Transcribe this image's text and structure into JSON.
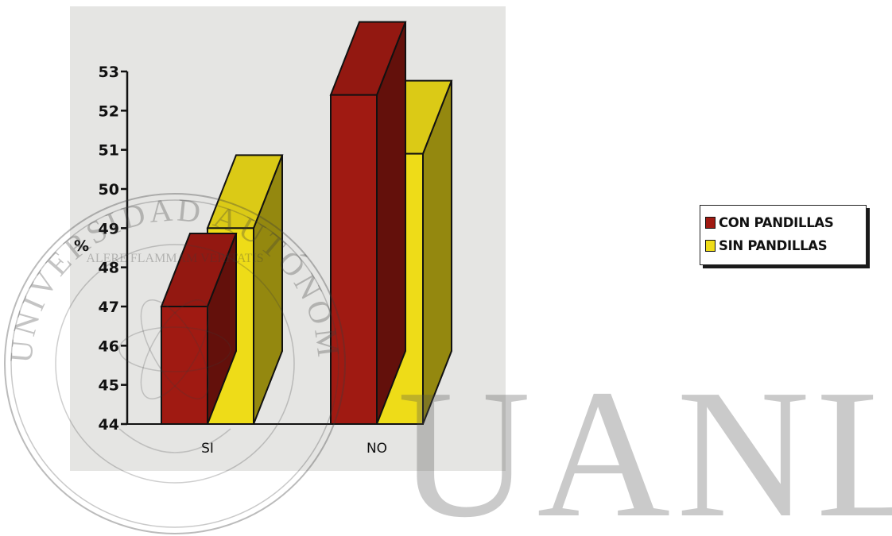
{
  "chart_data": {
    "type": "bar",
    "title": "",
    "xlabel": "",
    "ylabel": "%",
    "ylim": [
      44,
      53
    ],
    "yticks": [
      44,
      45,
      46,
      47,
      48,
      49,
      50,
      51,
      52,
      53
    ],
    "categories": [
      "SI",
      "NO"
    ],
    "series": [
      {
        "name": "CON PANDILLAS",
        "values": [
          47,
          52.4
        ],
        "color": "#a01a12"
      },
      {
        "name": "SIN PANDILLAS",
        "values": [
          49,
          50.9
        ],
        "color": "#eedc18"
      }
    ],
    "legend_position": "right",
    "three_d": true,
    "grid": false
  },
  "watermark": {
    "text": "UANL",
    "seal_texts": [
      "UNIVERSIDAD AUTÓNOMA DE NUEVO LEÓN",
      "ALERE FLAMMAM VERITATIS"
    ]
  }
}
